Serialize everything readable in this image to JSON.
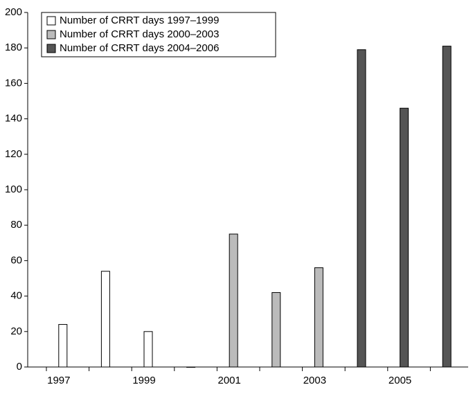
{
  "chart_data": {
    "type": "bar",
    "categories": [
      "1997",
      null,
      "1999",
      null,
      "2001",
      null,
      "2003",
      null,
      "2005",
      null
    ],
    "series": [
      {
        "name": "Number of CRRT days 1997–1999",
        "color": "#ffffff",
        "values": [
          24,
          54,
          20,
          null,
          null,
          null,
          null,
          null,
          null,
          null
        ]
      },
      {
        "name": "Number of CRRT days 2000–2003",
        "color": "#bbbbbb",
        "values": [
          null,
          null,
          null,
          0,
          75,
          42,
          56,
          null,
          null,
          null
        ]
      },
      {
        "name": "Number of CRRT days 2004–2006",
        "color": "#555555",
        "values": [
          null,
          null,
          null,
          null,
          null,
          null,
          null,
          179,
          146,
          181
        ]
      }
    ],
    "ylim": [
      0,
      200
    ],
    "yticks": [
      0,
      20,
      40,
      60,
      80,
      100,
      120,
      140,
      160,
      180,
      200
    ],
    "grid": false,
    "legend": "top-left"
  }
}
